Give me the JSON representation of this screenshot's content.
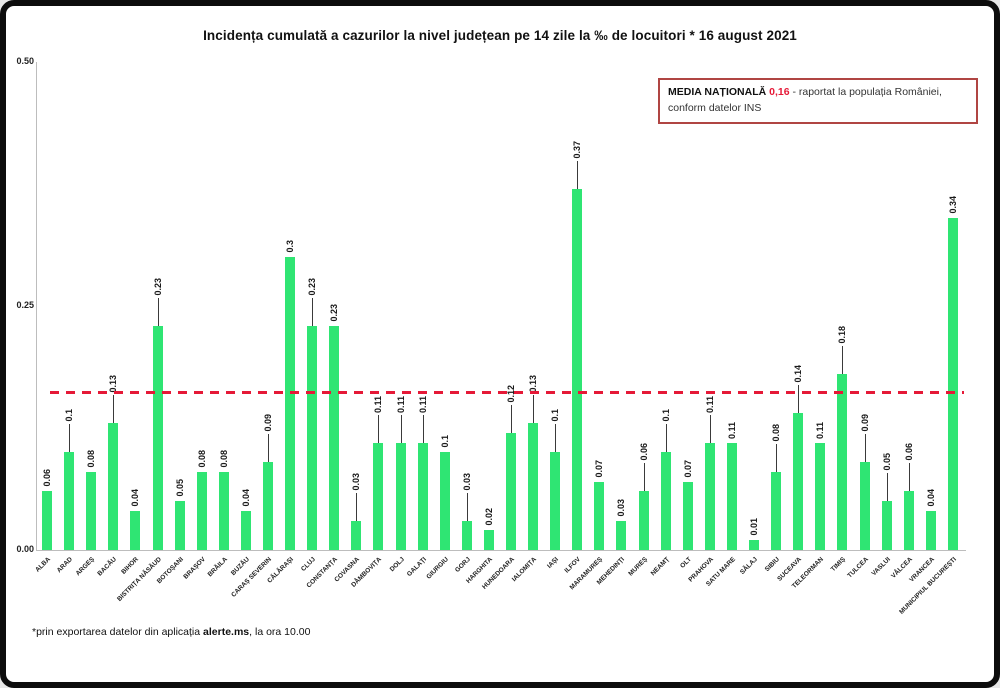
{
  "title": "Incidența cumulată a cazurilor la nivel județean pe 14 zile la ‰ de locuitori *  16 august 2021",
  "media_box": {
    "label": "MEDIA NAȚIONALĂ ",
    "value": "0,16",
    "text": " - raportat la populația României, conform datelor INS"
  },
  "footer": {
    "prefix": "*prin exportarea datelor din aplicația ",
    "bold": "alerte.ms",
    "suffix": ", la ora 10.00"
  },
  "chart_data": {
    "type": "bar",
    "title": "Incidența cumulată a cazurilor la nivel județean pe 14 zile la ‰ de locuitori * 16 august 2021",
    "categories": [
      "ALBA",
      "ARAD",
      "ARGEȘ",
      "BACĂU",
      "BIHOR",
      "BISTRIȚA NĂSĂUD",
      "BOTOȘANI",
      "BRAȘOV",
      "BRĂILA",
      "BUZĂU",
      "CARAȘ SEVERIN",
      "CĂLĂRAȘI",
      "CLUJ",
      "CONSTANȚA",
      "COVASNA",
      "DÂMBOVIȚA",
      "DOLJ",
      "GALAȚI",
      "GIURGIU",
      "GORJ",
      "HARGHITA",
      "HUNEDOARA",
      "IALOMIȚA",
      "IAȘI",
      "ILFOV",
      "MARAMUREȘ",
      "MEHEDINȚI",
      "MUREȘ",
      "NEAMȚ",
      "OLT",
      "PRAHOVA",
      "SATU MARE",
      "SĂLAJ",
      "SIBIU",
      "SUCEAVA",
      "TELEORMAN",
      "TIMIȘ",
      "TULCEA",
      "VASLUI",
      "VÂLCEA",
      "VRANCEA",
      "MUNICIPIUL BUCUREȘTI"
    ],
    "values": [
      0.06,
      0.1,
      0.08,
      0.13,
      0.04,
      0.23,
      0.05,
      0.08,
      0.08,
      0.04,
      0.09,
      0.3,
      0.23,
      0.23,
      0.03,
      0.11,
      0.11,
      0.11,
      0.1,
      0.03,
      0.02,
      0.12,
      0.13,
      0.1,
      0.37,
      0.07,
      0.03,
      0.06,
      0.1,
      0.07,
      0.11,
      0.11,
      0.01,
      0.08,
      0.14,
      0.11,
      0.18,
      0.09,
      0.05,
      0.06,
      0.04,
      0.34
    ],
    "value_labels": [
      "0.06",
      "0.1",
      "0.08",
      "0.13",
      "0.04",
      "0.23",
      "0.05",
      "0.08",
      "0.08",
      "0.04",
      "0.09",
      "0.3",
      "0.23",
      "0.23",
      "0.03",
      "0.11",
      "0.11",
      "0.11",
      "0.1",
      "0.03",
      "0.02",
      "0.12",
      "0.13",
      "0.1",
      "0.37",
      "0.07",
      "0.03",
      "0.06",
      "0.1",
      "0.07",
      "0.11",
      "0.11",
      "0.01",
      "0.08",
      "0.14",
      "0.11",
      "0.18",
      "0.09",
      "0.05",
      "0.06",
      "0.04",
      "0.34"
    ],
    "callouts": [
      false,
      true,
      false,
      true,
      false,
      true,
      false,
      false,
      false,
      false,
      true,
      false,
      true,
      false,
      true,
      true,
      true,
      true,
      false,
      true,
      false,
      true,
      true,
      true,
      true,
      false,
      false,
      true,
      true,
      false,
      true,
      false,
      false,
      true,
      true,
      false,
      true,
      true,
      true,
      true,
      false,
      false
    ],
    "xlabel": "",
    "ylabel": "",
    "ylim": [
      0,
      0.5
    ],
    "yticks": [
      "0.00",
      "0.25",
      "0.50"
    ],
    "grid": false,
    "legend": null,
    "bar_color": "#2fe573",
    "reference_line": {
      "value": 0.16,
      "color": "#e51937",
      "style": "dashed",
      "meaning": "media națională 0,16"
    }
  }
}
